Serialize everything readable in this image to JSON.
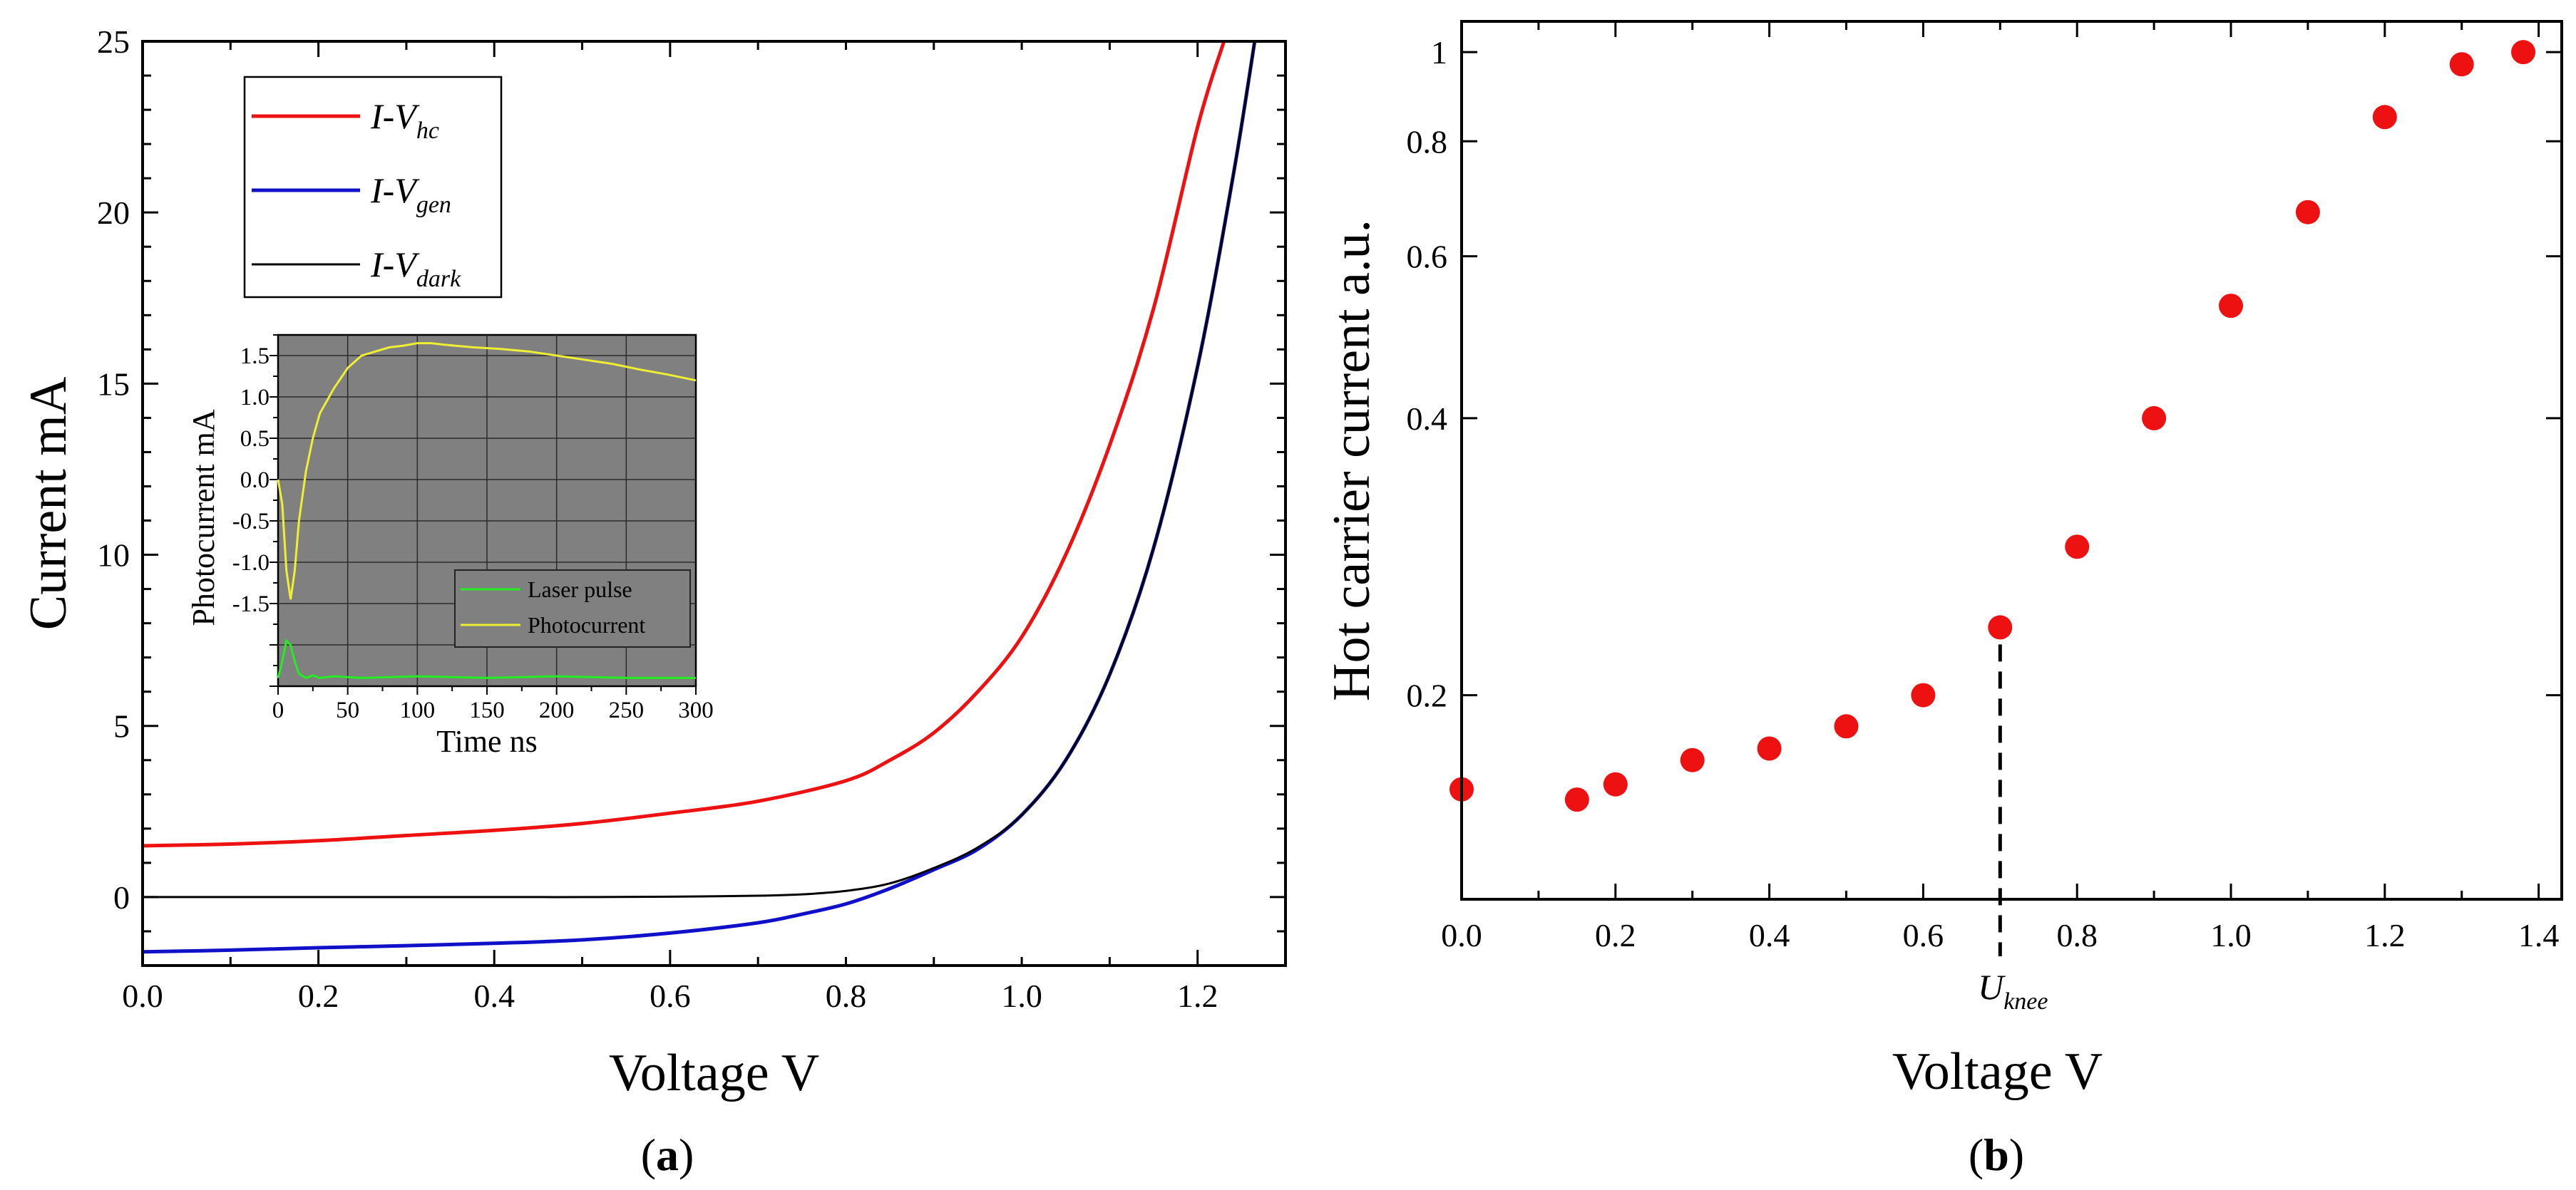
{
  "colors": {
    "hc": "#ee1111",
    "gen": "#1010c8",
    "dark": "#000000",
    "inset_bg": "#808080",
    "laser": "#22ee22",
    "photocurrent": "#eeee33",
    "marker": "#ee1111"
  },
  "chart_data": [
    {
      "type": "line",
      "panel_label": "a",
      "xlabel": "Voltage V",
      "ylabel": "Current mA",
      "xlim": [
        0,
        1.3
      ],
      "ylim": [
        -2,
        25
      ],
      "x_ticks": [
        "0.0",
        "0.2",
        "0.4",
        "0.6",
        "0.8",
        "1.0",
        "1.2"
      ],
      "x_tick_values": [
        0,
        0.2,
        0.4,
        0.6,
        0.8,
        1.0,
        1.2
      ],
      "y_ticks": [
        "0",
        "5",
        "10",
        "15",
        "20",
        "25"
      ],
      "y_tick_values": [
        0,
        5,
        10,
        15,
        20,
        25
      ],
      "legend": [
        {
          "main": "I-V",
          "sub": "hc",
          "color_key": "hc"
        },
        {
          "main": "I-V",
          "sub": "gen",
          "color_key": "gen"
        },
        {
          "main": "I-V",
          "sub": "dark",
          "color_key": "dark"
        }
      ],
      "series": [
        {
          "name": "I-V_hc",
          "color_key": "hc",
          "x": [
            0,
            0.1,
            0.2,
            0.3,
            0.4,
            0.5,
            0.6,
            0.7,
            0.8,
            0.85,
            0.9,
            0.95,
            1.0,
            1.05,
            1.1,
            1.15,
            1.2,
            1.23
          ],
          "y": [
            1.5,
            1.55,
            1.65,
            1.8,
            1.95,
            2.15,
            2.45,
            2.8,
            3.4,
            4.0,
            4.8,
            6.0,
            7.6,
            10.0,
            13.2,
            17.2,
            22.5,
            25
          ]
        },
        {
          "name": "I-V_gen",
          "color_key": "gen",
          "x": [
            0,
            0.1,
            0.2,
            0.3,
            0.4,
            0.5,
            0.6,
            0.7,
            0.75,
            0.8,
            0.85,
            0.9,
            0.95,
            1.0,
            1.05,
            1.1,
            1.15,
            1.2,
            1.24,
            1.265
          ],
          "y": [
            -1.6,
            -1.55,
            -1.48,
            -1.42,
            -1.35,
            -1.25,
            -1.05,
            -0.75,
            -0.5,
            -0.2,
            0.25,
            0.8,
            1.4,
            2.4,
            4.0,
            6.5,
            10.2,
            15.5,
            21.0,
            25
          ]
        },
        {
          "name": "I-V_dark",
          "color_key": "dark",
          "x": [
            0,
            0.1,
            0.2,
            0.3,
            0.4,
            0.5,
            0.6,
            0.7,
            0.75,
            0.8,
            0.85,
            0.9,
            0.95,
            1.0,
            1.05,
            1.1,
            1.15,
            1.2,
            1.24,
            1.265
          ],
          "y": [
            0,
            0,
            0,
            0,
            0,
            0,
            0.01,
            0.04,
            0.08,
            0.18,
            0.4,
            0.85,
            1.45,
            2.4,
            4.0,
            6.5,
            10.2,
            15.5,
            21.0,
            25
          ]
        }
      ],
      "inset": {
        "xlabel": "Time ns",
        "ylabel": "Photocurrent mA",
        "xlim": [
          0,
          300
        ],
        "ylim": [
          -2.5,
          1.75
        ],
        "x_ticks": [
          "0",
          "50",
          "100",
          "150",
          "200",
          "250",
          "300"
        ],
        "x_tick_values": [
          0,
          50,
          100,
          150,
          200,
          250,
          300
        ],
        "y_ticks": [
          "1.5",
          "1.0",
          "0.5",
          "0.0",
          "-0.5",
          "-1.0",
          "-1.5"
        ],
        "y_tick_values": [
          1.5,
          1.0,
          0.5,
          0.0,
          -0.5,
          -1.0,
          -1.5
        ],
        "legend": [
          "Laser pulse",
          "Photocurrent"
        ],
        "series": [
          {
            "name": "Laser pulse",
            "color_key": "laser",
            "x": [
              0,
              3,
              6,
              9,
              12,
              15,
              20,
              25,
              30,
              40,
              60,
              100,
              150,
              200,
              250,
              300
            ],
            "y": [
              -2.4,
              -2.2,
              -1.95,
              -2.0,
              -2.2,
              -2.35,
              -2.4,
              -2.37,
              -2.4,
              -2.38,
              -2.4,
              -2.38,
              -2.4,
              -2.38,
              -2.4,
              -2.4
            ]
          },
          {
            "name": "Photocurrent",
            "color_key": "photocurrent",
            "x": [
              0,
              3,
              6,
              9,
              12,
              15,
              20,
              25,
              30,
              40,
              50,
              60,
              70,
              80,
              90,
              100,
              110,
              120,
              140,
              160,
              180,
              200,
              220,
              240,
              260,
              280,
              300
            ],
            "y": [
              0.0,
              -0.3,
              -1.1,
              -1.45,
              -1.1,
              -0.5,
              0.1,
              0.5,
              0.8,
              1.1,
              1.35,
              1.5,
              1.55,
              1.6,
              1.62,
              1.65,
              1.65,
              1.63,
              1.6,
              1.58,
              1.55,
              1.5,
              1.45,
              1.4,
              1.33,
              1.27,
              1.2
            ]
          }
        ]
      }
    },
    {
      "type": "scatter",
      "panel_label": "b",
      "xlabel": "Voltage V",
      "ylabel": "Hot carrier current a.u.",
      "yscale": "log",
      "xlim": [
        0,
        1.43
      ],
      "ylim": [
        0.12,
        1.08
      ],
      "x_ticks": [
        "0.0",
        "0.2",
        "0.4",
        "0.6",
        "0.8",
        "1.0",
        "1.2",
        "1.4"
      ],
      "x_tick_values": [
        0,
        0.2,
        0.4,
        0.6,
        0.8,
        1.0,
        1.2,
        1.4
      ],
      "y_ticks": [
        "0.2",
        "0.4",
        "0.6",
        "0.8",
        "1"
      ],
      "y_tick_values": [
        0.2,
        0.4,
        0.6,
        0.8,
        1.0
      ],
      "knee_label_main": "U",
      "knee_label_sub": "knee",
      "knee_x": 0.7,
      "x": [
        0.0,
        0.15,
        0.2,
        0.3,
        0.4,
        0.5,
        0.6,
        0.7,
        0.8,
        0.9,
        1.0,
        1.1,
        1.2,
        1.3,
        1.38
      ],
      "y": [
        0.158,
        0.154,
        0.16,
        0.17,
        0.175,
        0.185,
        0.2,
        0.237,
        0.29,
        0.4,
        0.53,
        0.67,
        0.85,
        0.97,
        1.0
      ]
    }
  ]
}
